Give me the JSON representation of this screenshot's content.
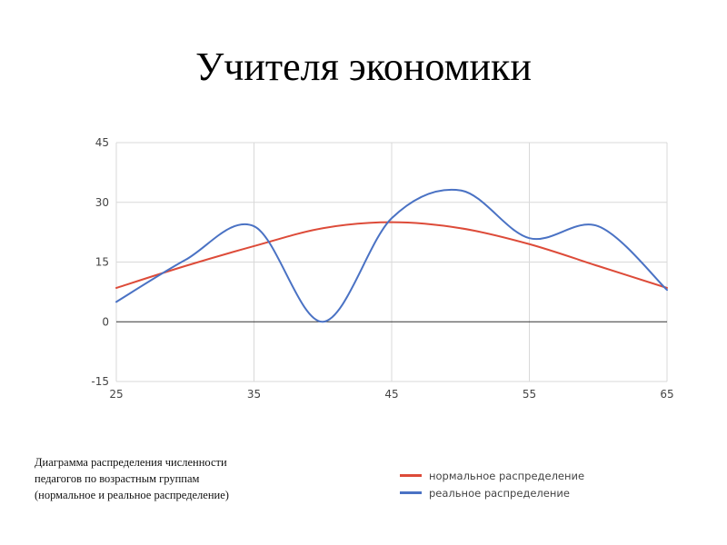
{
  "slide": {
    "title": "Учителя экономики",
    "caption_lines": [
      "Диаграмма распределения численности",
      "педагогов по возрастным группам",
      "(нормальное и реальное распределение)"
    ]
  },
  "chart_data": {
    "type": "line",
    "smooth": true,
    "xlim": [
      25,
      65
    ],
    "ylim": [
      -15,
      45
    ],
    "xticks": [
      "25",
      "35",
      "45",
      "55",
      "65"
    ],
    "yticks": [
      "45",
      "30",
      "15",
      "0",
      "-15"
    ],
    "grid": true,
    "legend_position": "bottom-right",
    "series": [
      {
        "name": "нормальное распределение",
        "color": "#dd4b39",
        "x": [
          25,
          30,
          35,
          40,
          45,
          50,
          55,
          60,
          65
        ],
        "values": [
          8.5,
          14,
          19,
          23.5,
          25,
          23.5,
          19.5,
          14,
          8.5
        ]
      },
      {
        "name": "реальное распределение",
        "color": "#4a72c4",
        "x": [
          25,
          30,
          35,
          40,
          45,
          50,
          55,
          60,
          65
        ],
        "values": [
          5,
          15.5,
          24,
          0,
          26,
          33,
          21,
          24,
          8
        ]
      }
    ]
  }
}
